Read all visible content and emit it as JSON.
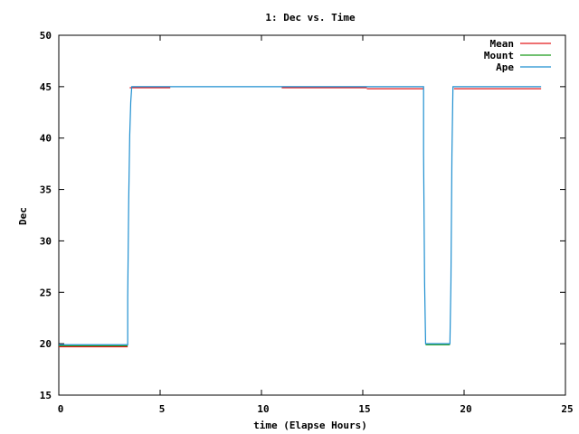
{
  "chart_data": {
    "type": "line",
    "title": "1: Dec vs. Time",
    "xlabel": "time (Elapse Hours)",
    "ylabel": "Dec",
    "xlim": [
      0,
      25
    ],
    "ylim": [
      15,
      50
    ],
    "xticks": [
      0,
      5,
      10,
      15,
      20,
      25
    ],
    "yticks": [
      15,
      20,
      25,
      30,
      35,
      40,
      45,
      50
    ],
    "grid": false,
    "legend_position": "top-right",
    "series": [
      {
        "name": "Mean",
        "color": "#e41a1c",
        "style": "segments",
        "segments": [
          [
            [
              0,
              19.7
            ],
            [
              3.4,
              19.7
            ]
          ],
          [
            [
              3.5,
              44.9
            ],
            [
              5.5,
              44.9
            ]
          ],
          [
            [
              11.0,
              44.9
            ],
            [
              15.2,
              44.9
            ]
          ],
          [
            [
              15.2,
              44.8
            ],
            [
              18.0,
              44.8
            ]
          ],
          [
            [
              19.5,
              44.8
            ],
            [
              23.8,
              44.8
            ]
          ]
        ]
      },
      {
        "name": "Mount",
        "color": "#1a9a1a",
        "style": "segments",
        "segments": [
          [
            [
              0,
              19.8
            ],
            [
              3.4,
              19.8
            ]
          ],
          [
            [
              18.1,
              19.9
            ],
            [
              19.3,
              19.9
            ]
          ]
        ]
      },
      {
        "name": "Ape",
        "color": "#1f8fd0",
        "style": "line",
        "points": [
          [
            0,
            19.9
          ],
          [
            3.4,
            19.9
          ],
          [
            3.4,
            24.5
          ],
          [
            3.45,
            34.0
          ],
          [
            3.5,
            40.3
          ],
          [
            3.55,
            43.5
          ],
          [
            3.6,
            45.0
          ],
          [
            18.0,
            45.0
          ],
          [
            18.0,
            38.5
          ],
          [
            18.05,
            26.0
          ],
          [
            18.1,
            20.0
          ],
          [
            19.3,
            20.0
          ],
          [
            19.35,
            26.0
          ],
          [
            19.4,
            38.5
          ],
          [
            19.45,
            45.0
          ],
          [
            23.8,
            45.0
          ]
        ]
      }
    ]
  }
}
